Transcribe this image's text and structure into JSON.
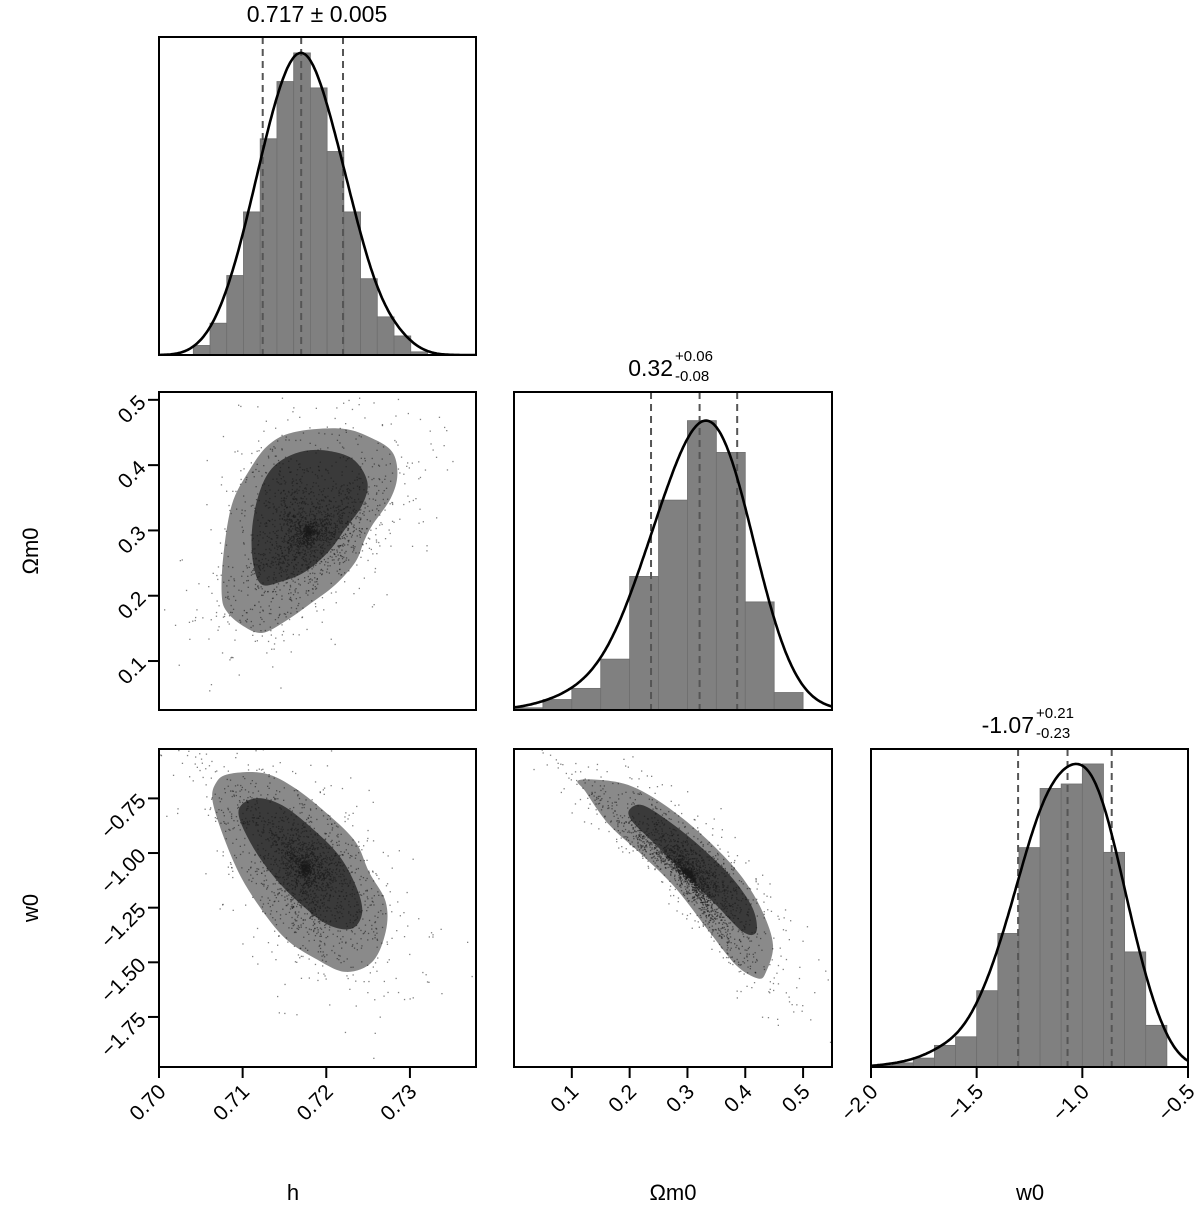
{
  "chart_data": {
    "type": "corner",
    "parameters": [
      "h",
      "Ωm0",
      "w0"
    ],
    "axis_labels": {
      "x": [
        "h",
        "Ωm0",
        "w0"
      ],
      "y": [
        "Ωm0",
        "w0"
      ]
    },
    "titles": [
      {
        "text": "0.717 ± 0.005"
      },
      {
        "value": "0.32",
        "plus": "+0.06",
        "minus": "-0.08"
      },
      {
        "value": "-1.07",
        "plus": "+0.21",
        "minus": "-0.23"
      }
    ],
    "axes": {
      "h": {
        "xlim": [
          0.7,
          0.7379
        ],
        "ticks": [
          0.7,
          0.71,
          0.72,
          0.73
        ],
        "tick_labels": [
          "0.70",
          "0.71",
          "0.72",
          "0.73"
        ]
      },
      "Om0_x": {
        "xlim": [
          0.0,
          0.55
        ],
        "ticks": [
          0.1,
          0.2,
          0.3,
          0.4,
          0.5
        ],
        "tick_labels": [
          "0.1",
          "0.2",
          "0.3",
          "0.4",
          "0.5"
        ]
      },
      "Om0_y": {
        "ylim": [
          0.025,
          0.512
        ],
        "ticks": [
          0.1,
          0.2,
          0.3,
          0.4,
          0.5
        ],
        "tick_labels": [
          "0.1",
          "0.2",
          "0.3",
          "0.4",
          "0.5"
        ]
      },
      "w0_x": {
        "xlim": [
          -2.0,
          -0.5
        ],
        "ticks": [
          -2.0,
          -1.5,
          -1.0,
          -0.5
        ],
        "tick_labels": [
          "−2.0",
          "−1.5",
          "−1.0",
          "−0.5"
        ]
      },
      "w0_y": {
        "ylim": [
          -1.979,
          -0.524
        ],
        "ticks": [
          -0.75,
          -1.0,
          -1.25,
          -1.5,
          -1.75
        ],
        "tick_labels": [
          "−0.75",
          "−1.00",
          "−1.25",
          "−1.50",
          "−1.75"
        ]
      }
    },
    "histograms": [
      {
        "parameter": "h",
        "bin_edges": [
          0.7041,
          0.7061,
          0.7081,
          0.7101,
          0.7121,
          0.7141,
          0.7161,
          0.7181,
          0.7201,
          0.7221,
          0.7241,
          0.7261,
          0.7281,
          0.7301,
          0.7321
        ],
        "heights": [
          0.03,
          0.1,
          0.25,
          0.45,
          0.68,
          0.86,
          0.95,
          0.84,
          0.64,
          0.45,
          0.24,
          0.12,
          0.06,
          0.01
        ],
        "quantiles": [
          0.7124,
          0.717,
          0.722
        ]
      },
      {
        "parameter": "Ωm0",
        "bin_edges": [
          0.0,
          0.05,
          0.1,
          0.15,
          0.2,
          0.25,
          0.3,
          0.35,
          0.4,
          0.45,
          0.5
        ],
        "heights": [
          0.007,
          0.033,
          0.068,
          0.16,
          0.42,
          0.66,
          0.91,
          0.81,
          0.34,
          0.055
        ],
        "quantiles": [
          0.237,
          0.321,
          0.386
        ]
      },
      {
        "parameter": "w0",
        "bin_edges": [
          -2.0,
          -1.9,
          -1.8,
          -1.7,
          -1.6,
          -1.5,
          -1.4,
          -1.3,
          -1.2,
          -1.1,
          -1.0,
          -0.9,
          -0.8,
          -0.7,
          -0.6
        ],
        "heights": [
          0.005,
          0.013,
          0.028,
          0.068,
          0.095,
          0.24,
          0.42,
          0.69,
          0.876,
          0.89,
          0.953,
          0.675,
          0.362,
          0.131
        ],
        "quantiles": [
          -1.304,
          -1.07,
          -0.861
        ]
      }
    ],
    "pairs": [
      {
        "x": "h",
        "y": "Ωm0",
        "outer_contour": [
          [
            0.7075,
            0.201
          ],
          [
            0.7077,
            0.262
          ],
          [
            0.7087,
            0.339
          ],
          [
            0.7107,
            0.39
          ],
          [
            0.7131,
            0.431
          ],
          [
            0.7163,
            0.451
          ],
          [
            0.7219,
            0.456
          ],
          [
            0.7255,
            0.441
          ],
          [
            0.7279,
            0.42
          ],
          [
            0.7285,
            0.385
          ],
          [
            0.7277,
            0.349
          ],
          [
            0.7255,
            0.308
          ],
          [
            0.7245,
            0.283
          ],
          [
            0.7235,
            0.252
          ],
          [
            0.7211,
            0.217
          ],
          [
            0.7179,
            0.186
          ],
          [
            0.7151,
            0.161
          ],
          [
            0.7123,
            0.143
          ],
          [
            0.7099,
            0.155
          ],
          [
            0.7081,
            0.176
          ]
        ],
        "inner_contour": [
          [
            0.7111,
            0.298
          ],
          [
            0.7119,
            0.354
          ],
          [
            0.7135,
            0.395
          ],
          [
            0.7163,
            0.418
          ],
          [
            0.7195,
            0.423
          ],
          [
            0.7231,
            0.41
          ],
          [
            0.7249,
            0.375
          ],
          [
            0.7243,
            0.339
          ],
          [
            0.7223,
            0.303
          ],
          [
            0.7203,
            0.268
          ],
          [
            0.7175,
            0.237
          ],
          [
            0.7147,
            0.222
          ],
          [
            0.7123,
            0.217
          ],
          [
            0.7113,
            0.247
          ]
        ]
      },
      {
        "x": "h",
        "y": "w0",
        "outer_contour": [
          [
            0.7065,
            -0.781
          ],
          [
            0.7069,
            -0.674
          ],
          [
            0.7087,
            -0.636
          ],
          [
            0.7127,
            -0.636
          ],
          [
            0.7163,
            -0.704
          ],
          [
            0.7203,
            -0.826
          ],
          [
            0.7235,
            -0.949
          ],
          [
            0.7251,
            -1.086
          ],
          [
            0.7271,
            -1.223
          ],
          [
            0.7271,
            -1.361
          ],
          [
            0.7255,
            -1.498
          ],
          [
            0.7223,
            -1.544
          ],
          [
            0.7187,
            -1.483
          ],
          [
            0.7151,
            -1.391
          ],
          [
            0.7119,
            -1.239
          ],
          [
            0.7091,
            -1.055
          ]
        ],
        "inner_contour": [
          [
            0.7095,
            -0.811
          ],
          [
            0.7115,
            -0.75
          ],
          [
            0.7147,
            -0.781
          ],
          [
            0.7183,
            -0.887
          ],
          [
            0.7215,
            -1.01
          ],
          [
            0.7235,
            -1.147
          ],
          [
            0.7243,
            -1.269
          ],
          [
            0.7231,
            -1.345
          ],
          [
            0.7203,
            -1.33
          ],
          [
            0.7171,
            -1.239
          ],
          [
            0.7139,
            -1.116
          ],
          [
            0.7111,
            -0.964
          ]
        ]
      },
      {
        "x": "Ωm0",
        "y": "w0",
        "outer_contour": [
          [
            0.113,
            -0.666
          ],
          [
            0.182,
            -0.677
          ],
          [
            0.234,
            -0.735
          ],
          [
            0.292,
            -0.842
          ],
          [
            0.35,
            -0.979
          ],
          [
            0.396,
            -1.116
          ],
          [
            0.43,
            -1.269
          ],
          [
            0.448,
            -1.422
          ],
          [
            0.436,
            -1.544
          ],
          [
            0.422,
            -1.574
          ],
          [
            0.384,
            -1.513
          ],
          [
            0.338,
            -1.361
          ],
          [
            0.28,
            -1.162
          ],
          [
            0.222,
            -1.01
          ],
          [
            0.165,
            -0.872
          ],
          [
            0.124,
            -0.72
          ]
        ],
        "inner_contour": [
          [
            0.199,
            -0.804
          ],
          [
            0.222,
            -0.781
          ],
          [
            0.269,
            -0.857
          ],
          [
            0.326,
            -0.979
          ],
          [
            0.378,
            -1.116
          ],
          [
            0.413,
            -1.254
          ],
          [
            0.419,
            -1.361
          ],
          [
            0.396,
            -1.361
          ],
          [
            0.35,
            -1.239
          ],
          [
            0.292,
            -1.086
          ],
          [
            0.24,
            -0.949
          ],
          [
            0.205,
            -0.857
          ]
        ]
      }
    ],
    "colors": {
      "histogram": "#808080",
      "outer_contour": "#8a8a8a",
      "inner_contour": "#3a3a3a",
      "points": "#1a1a1a",
      "kde": "#000000",
      "quantile_lines": "#555555"
    }
  }
}
